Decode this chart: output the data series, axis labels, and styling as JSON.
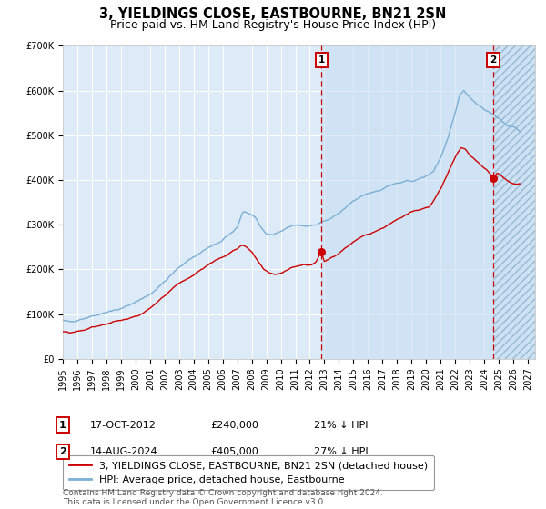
{
  "title": "3, YIELDINGS CLOSE, EASTBOURNE, BN21 2SN",
  "subtitle": "Price paid vs. HM Land Registry's House Price Index (HPI)",
  "ylim": [
    0,
    700000
  ],
  "xlim_start": 1995.0,
  "xlim_end": 2027.5,
  "yticks": [
    0,
    100000,
    200000,
    300000,
    400000,
    500000,
    600000,
    700000
  ],
  "ytick_labels": [
    "£0",
    "£100K",
    "£200K",
    "£300K",
    "£400K",
    "£500K",
    "£600K",
    "£700K"
  ],
  "xticks": [
    1995,
    1996,
    1997,
    1998,
    1999,
    2000,
    2001,
    2002,
    2003,
    2004,
    2005,
    2006,
    2007,
    2008,
    2009,
    2010,
    2011,
    2012,
    2013,
    2014,
    2015,
    2016,
    2017,
    2018,
    2019,
    2020,
    2021,
    2022,
    2023,
    2024,
    2025,
    2026,
    2027
  ],
  "hpi_color": "#7bafd4",
  "price_color": "#cc0000",
  "background_color": "#ffffff",
  "plot_bg_color": "#ddeaf8",
  "legend_label_price": "3, YIELDINGS CLOSE, EASTBOURNE, BN21 2SN (detached house)",
  "legend_label_hpi": "HPI: Average price, detached house, Eastbourne",
  "marker1_date": 2012.79,
  "marker1_price": 240000,
  "marker2_date": 2024.62,
  "marker2_price": 405000,
  "vline1_x": 2012.79,
  "vline2_x": 2024.62,
  "shade_start": 2012.79,
  "shade_end": 2024.62,
  "hatch_start": 2024.62,
  "hatch_end": 2027.5,
  "annotation1_label": "1",
  "annotation2_label": "2",
  "note1_num": "1",
  "note1_date": "17-OCT-2012",
  "note1_price": "£240,000",
  "note1_pct": "21% ↓ HPI",
  "note2_num": "2",
  "note2_date": "14-AUG-2024",
  "note2_price": "£405,000",
  "note2_pct": "27% ↓ HPI",
  "footer": "Contains HM Land Registry data © Crown copyright and database right 2024.\nThis data is licensed under the Open Government Licence v3.0.",
  "title_fontsize": 10.5,
  "subtitle_fontsize": 9,
  "tick_fontsize": 7,
  "legend_fontsize": 8,
  "note_fontsize": 8,
  "footer_fontsize": 6.5
}
